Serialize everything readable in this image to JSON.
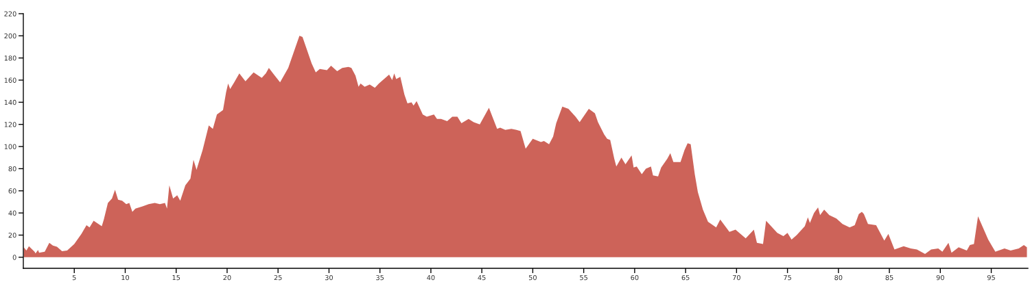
{
  "chart_data": {
    "type": "area",
    "x": [
      0.04,
      0.3,
      0.55,
      1.1,
      1.2,
      1.44,
      1.55,
      2.1,
      2.55,
      2.9,
      3.3,
      3.8,
      4.3,
      5.0,
      5.7,
      6.2,
      6.5,
      6.9,
      7.7,
      7.9,
      8.3,
      8.7,
      9.0,
      9.3,
      9.7,
      10.1,
      10.4,
      10.7,
      11.0,
      11.7,
      12.3,
      12.9,
      13.4,
      13.9,
      14.1,
      14.33,
      14.7,
      15.1,
      15.4,
      15.9,
      16.4,
      16.7,
      17.0,
      17.6,
      18.2,
      18.6,
      19.0,
      19.6,
      19.9,
      20.1,
      20.3,
      20.7,
      21.2,
      21.8,
      22.6,
      23.4,
      23.8,
      24.1,
      24.6,
      25.2,
      26.0,
      27.1,
      27.4,
      28.3,
      28.7,
      29.1,
      29.8,
      30.2,
      30.8,
      31.3,
      31.9,
      32.2,
      32.6,
      32.9,
      33.1,
      33.5,
      34.0,
      34.5,
      34.9,
      35.9,
      36.2,
      36.4,
      36.6,
      37.0,
      37.4,
      37.7,
      38.1,
      38.3,
      38.6,
      39.2,
      39.6,
      40.3,
      40.6,
      41.0,
      41.6,
      42.1,
      42.6,
      43.0,
      43.7,
      44.2,
      44.8,
      45.7,
      46.5,
      46.8,
      47.3,
      47.9,
      48.4,
      48.8,
      49.3,
      50.0,
      50.8,
      51.1,
      51.6,
      52.0,
      52.3,
      52.9,
      53.5,
      54.2,
      54.6,
      55.5,
      56.1,
      56.4,
      57.0,
      57.3,
      57.6,
      58.0,
      58.2,
      58.7,
      59.1,
      59.7,
      59.9,
      60.2,
      60.7,
      61.1,
      61.6,
      61.8,
      62.3,
      62.6,
      63.2,
      63.5,
      63.8,
      64.5,
      64.9,
      65.2,
      65.5,
      65.9,
      66.2,
      66.7,
      67.2,
      68.0,
      68.4,
      69.3,
      69.9,
      70.9,
      71.7,
      72.0,
      72.6,
      72.9,
      74.0,
      74.6,
      75.0,
      75.4,
      75.9,
      76.7,
      77.0,
      77.2,
      77.6,
      78.0,
      78.2,
      78.6,
      79.1,
      79.8,
      80.4,
      81.1,
      81.6,
      82.0,
      82.3,
      82.5,
      82.9,
      83.7,
      84.5,
      84.9,
      85.5,
      86.4,
      87.1,
      87.7,
      88.5,
      89.1,
      89.8,
      90.2,
      90.8,
      91.1,
      91.8,
      92.6,
      92.9,
      93.3,
      93.7,
      94.7,
      95.4,
      96.3,
      96.9,
      97.7,
      98.2,
      98.5
    ],
    "series": [
      {
        "color": "#cd6359",
        "values": [
          9,
          6,
          10,
          5,
          3.4,
          6.6,
          4,
          5,
          13,
          10.6,
          9.4,
          5.4,
          6,
          12,
          21,
          29,
          27,
          33,
          28,
          34,
          49,
          53,
          61,
          52,
          51,
          48,
          49,
          41,
          44,
          46,
          48,
          49,
          48,
          49,
          44,
          65,
          53,
          56,
          51,
          65,
          71,
          88,
          79,
          97,
          119,
          116,
          129,
          133,
          149,
          157,
          152,
          158,
          166,
          159,
          167,
          162,
          166,
          171,
          165,
          158,
          171,
          200,
          199,
          175,
          167,
          170,
          169,
          173,
          168,
          171,
          172,
          171,
          164,
          154,
          157,
          154,
          156,
          153,
          157,
          165,
          160,
          166,
          161,
          163,
          147,
          139,
          140,
          137,
          141,
          129,
          127,
          129,
          125,
          125,
          123,
          127,
          127,
          121,
          125,
          122,
          120,
          135,
          116,
          117,
          115,
          116,
          115,
          114,
          98,
          107,
          104,
          105,
          102,
          109,
          121,
          136,
          134,
          127,
          122,
          134,
          130,
          122,
          111,
          107,
          106,
          89,
          82,
          90,
          84,
          92,
          81,
          82,
          75,
          80,
          82,
          74,
          73,
          81,
          89,
          94,
          86,
          86,
          97,
          103,
          102,
          75,
          59,
          43,
          32,
          27,
          34,
          23,
          25,
          17,
          25,
          13,
          12,
          33,
          22,
          19,
          22,
          16,
          20,
          28,
          36,
          31,
          40,
          45,
          38,
          43,
          38,
          35,
          30,
          27,
          29,
          39,
          41,
          39,
          30,
          29,
          15,
          21,
          7,
          10,
          8,
          7,
          3,
          7,
          8,
          5,
          13,
          4,
          9,
          6,
          11,
          12,
          37,
          16,
          5,
          8,
          6,
          8,
          11,
          9
        ]
      }
    ],
    "xlim": [
      0,
      98.6
    ],
    "ylim": [
      -10,
      220
    ],
    "xticks": [
      5,
      10,
      15,
      20,
      25,
      30,
      35,
      40,
      45,
      50,
      55,
      60,
      65,
      70,
      75,
      80,
      85,
      90,
      95
    ],
    "yticks": [
      0,
      20,
      40,
      60,
      80,
      100,
      120,
      140,
      160,
      180,
      200,
      220
    ],
    "grid": false,
    "legend": false
  }
}
